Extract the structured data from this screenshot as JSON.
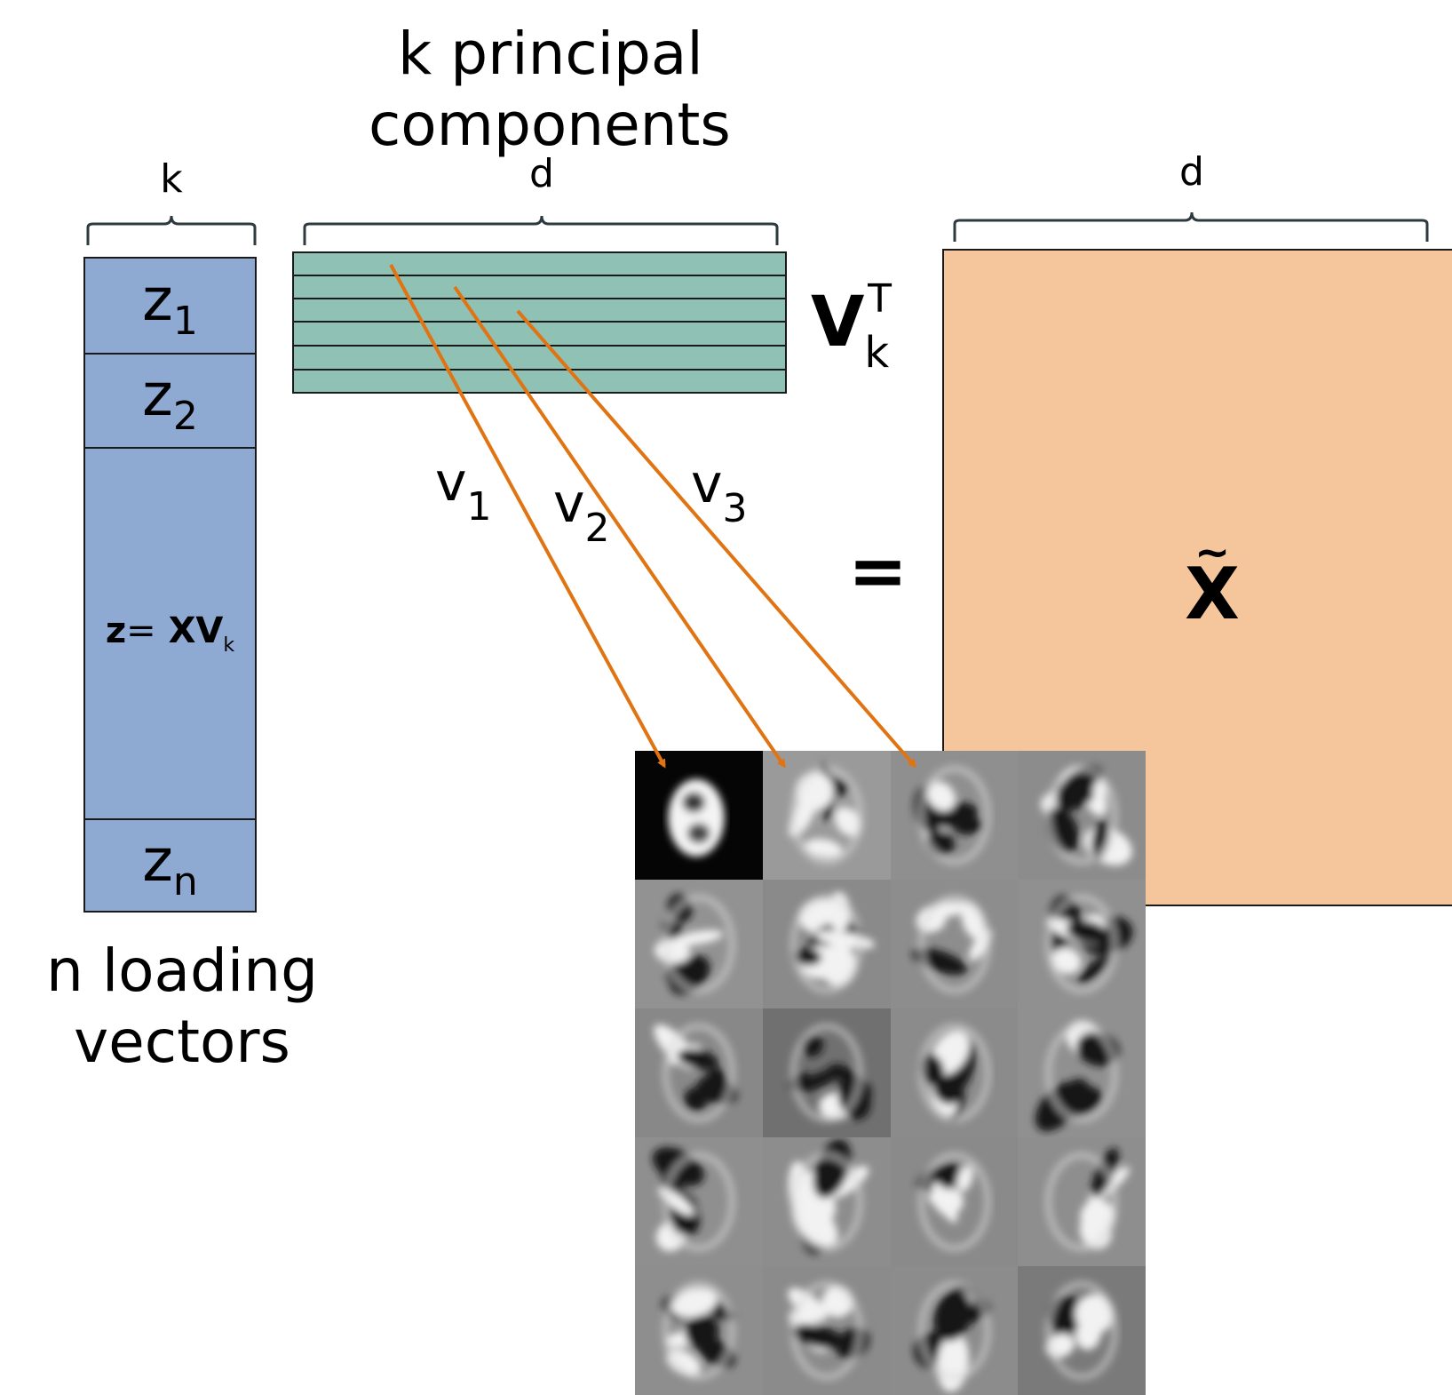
{
  "header": {
    "principal_line1": "k principal",
    "principal_line2": "components"
  },
  "dims": {
    "z_width": "k",
    "v_width": "d",
    "x_width": "d"
  },
  "z_matrix": {
    "row1": {
      "sym": "z",
      "sub": "1"
    },
    "row2": {
      "sym": "z",
      "sub": "2"
    },
    "formula": {
      "lhs": "z",
      "eq": "=",
      "rhs": "XV",
      "sub": "k"
    },
    "rown": {
      "sym": "z",
      "sub": "n"
    },
    "caption_line1": "n loading",
    "caption_line2": "vectors"
  },
  "v_matrix": {
    "label": "V",
    "sub": "k",
    "sup": "T"
  },
  "vectors": [
    {
      "sym": "v",
      "sub": "1"
    },
    {
      "sym": "v",
      "sub": "2"
    },
    {
      "sym": "v",
      "sub": "3"
    }
  ],
  "equals": "=",
  "x_matrix": {
    "tilde": "~",
    "label": "X"
  },
  "colors": {
    "z_fill": "#8ea9d2",
    "v_fill": "#8fc1b5",
    "x_fill": "#f5c69c",
    "arrow": "#e07413",
    "brace": "#2d3b40"
  },
  "eigen_grid": {
    "rows": 5,
    "cols": 4,
    "backgrounds": [
      "#050505",
      "#9a9a9a",
      "#8f8f8f",
      "#8c8c8c",
      "#929292",
      "#8a8a8a",
      "#8d8d8d",
      "#909090",
      "#888888",
      "#707070",
      "#8b8b8b",
      "#909090",
      "#8f8f8f",
      "#8d8d8d",
      "#8a8a8a",
      "#8e8e8e",
      "#8e8e8e",
      "#8b8b8b",
      "#8c8c8c",
      "#7a7a7a"
    ]
  }
}
